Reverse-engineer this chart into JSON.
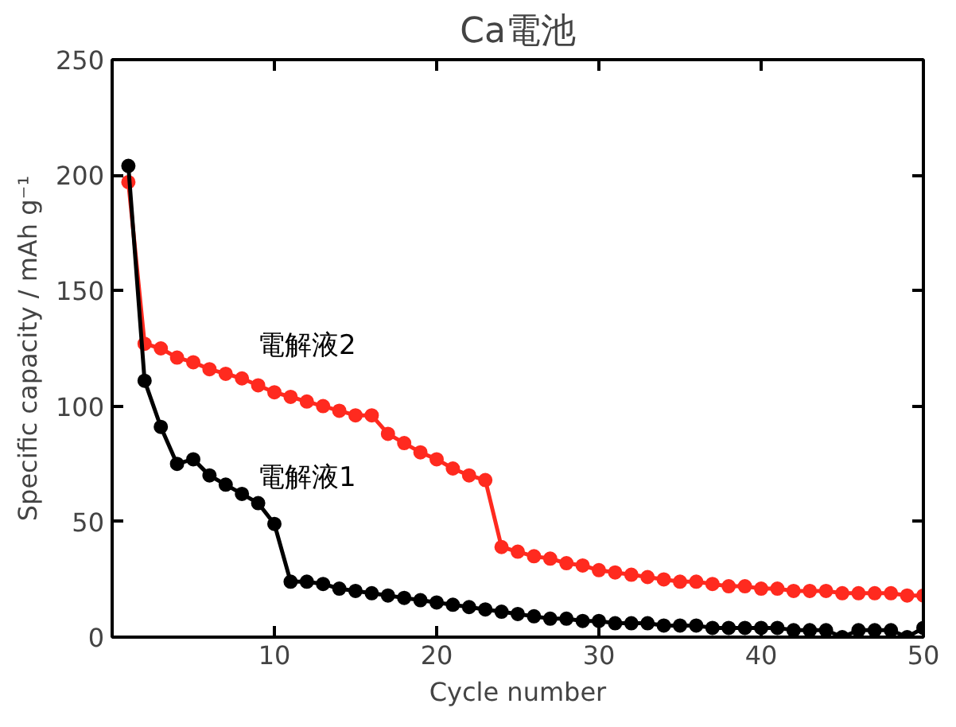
{
  "chart_data": {
    "type": "line",
    "title": "Ca電池",
    "xlabel": "Cycle number",
    "ylabel": "Specific capacity / mAh g⁻¹",
    "x": [
      1,
      2,
      3,
      4,
      5,
      6,
      7,
      8,
      9,
      10,
      11,
      12,
      13,
      14,
      15,
      16,
      17,
      18,
      19,
      20,
      21,
      22,
      23,
      24,
      25,
      26,
      27,
      28,
      29,
      30,
      31,
      32,
      33,
      34,
      35,
      36,
      37,
      38,
      39,
      40,
      41,
      42,
      43,
      44,
      45,
      46,
      47,
      48,
      49,
      50
    ],
    "series": [
      {
        "name": "電解液2",
        "color": "#ff2a1f",
        "values": [
          197,
          127,
          125,
          121,
          119,
          116,
          114,
          112,
          109,
          106,
          104,
          102,
          100,
          98,
          96,
          96,
          88,
          84,
          80,
          77,
          73,
          70,
          68,
          39,
          37,
          35,
          34,
          32,
          31,
          29,
          28,
          27,
          26,
          25,
          24,
          24,
          23,
          22,
          22,
          21,
          21,
          20,
          20,
          20,
          19,
          19,
          19,
          19,
          18,
          18
        ]
      },
      {
        "name": "電解液1",
        "color": "#000000",
        "values": [
          204,
          111,
          91,
          75,
          77,
          70,
          66,
          62,
          58,
          49,
          24,
          24,
          23,
          21,
          20,
          19,
          18,
          17,
          16,
          15,
          14,
          13,
          12,
          11,
          10,
          9,
          8,
          8,
          7,
          7,
          6,
          6,
          6,
          5,
          5,
          5,
          4,
          4,
          4,
          4,
          4,
          3,
          3,
          3,
          0,
          3,
          3,
          3,
          0,
          4
        ]
      }
    ],
    "xlim": [
      0,
      50
    ],
    "ylim": [
      0,
      250
    ],
    "xticks": [
      10,
      20,
      30,
      40,
      50
    ],
    "yticks": [
      0,
      50,
      100,
      150,
      200,
      250
    ],
    "marker": "circle",
    "line_style": "solid",
    "grid": false
  }
}
